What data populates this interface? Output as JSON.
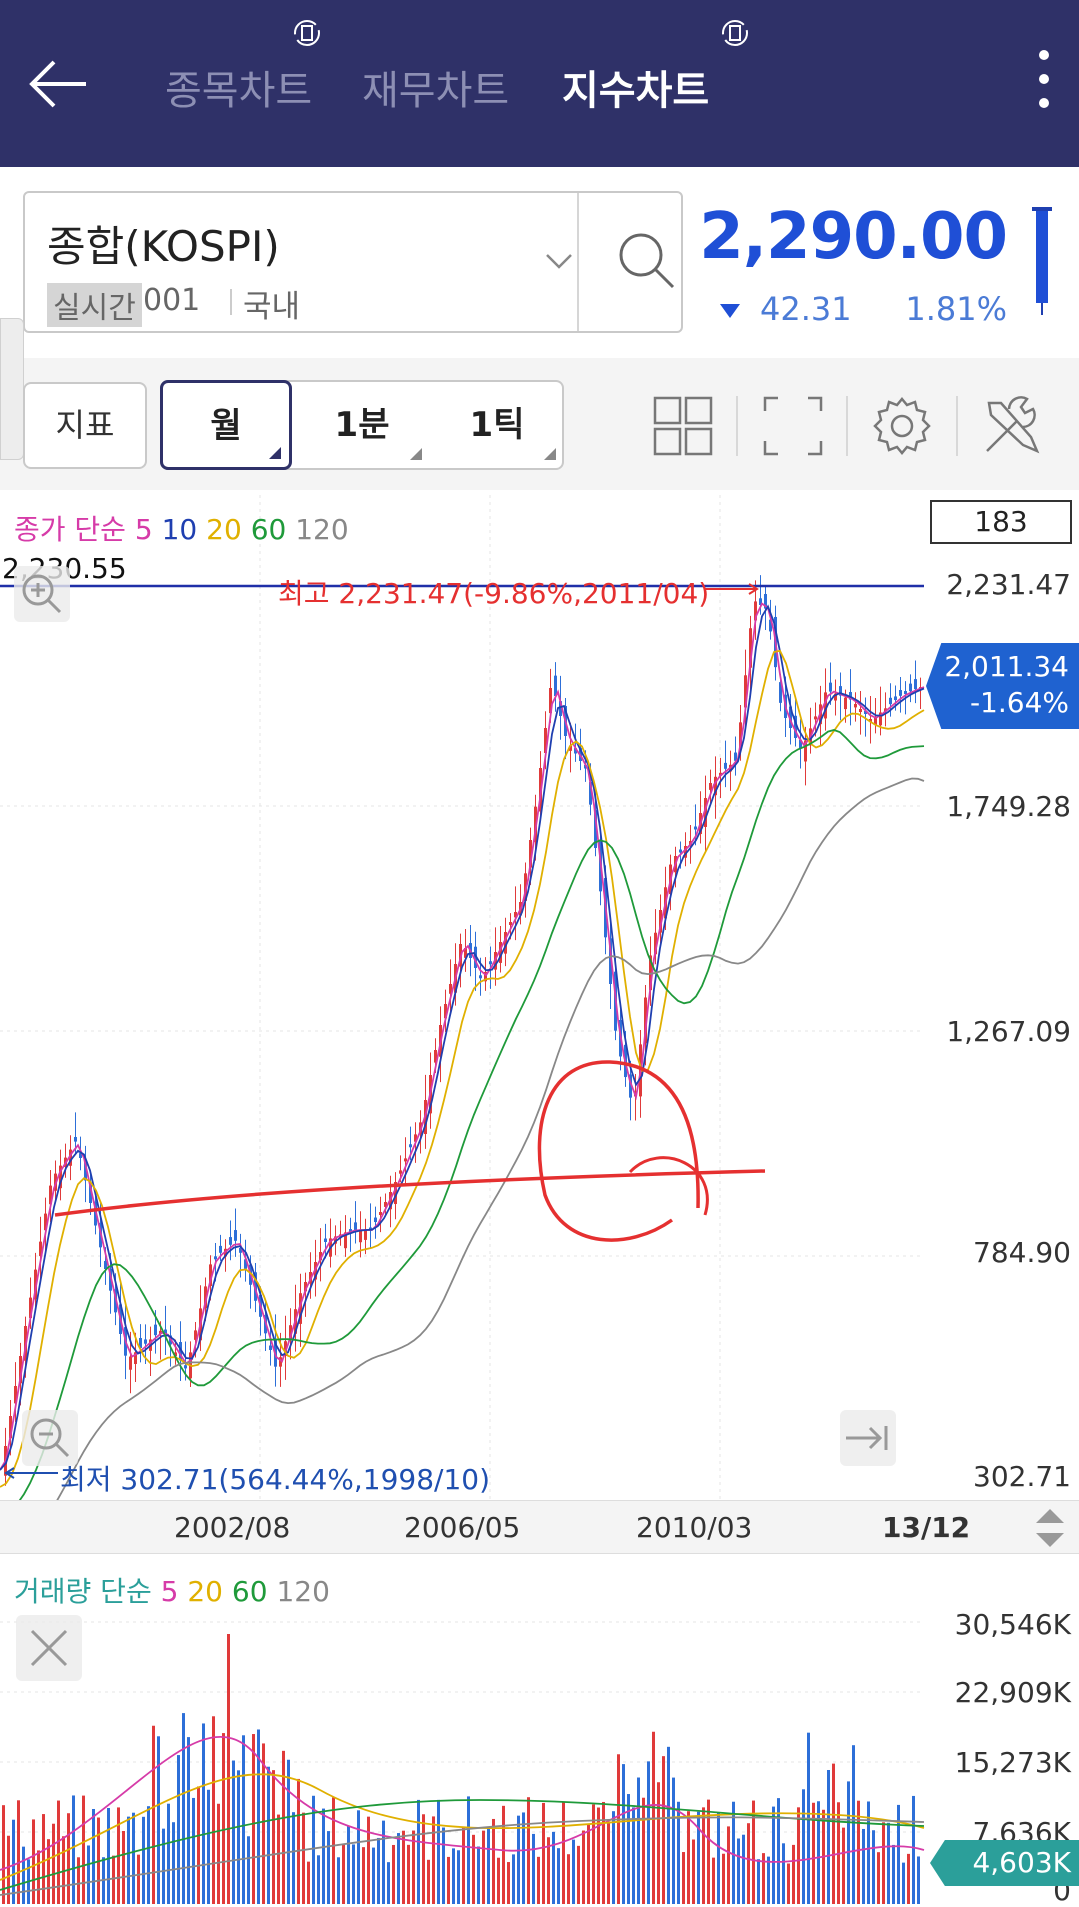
{
  "header": {
    "tabs": [
      {
        "label": "종목차트",
        "active": false
      },
      {
        "label": "재무차트",
        "active": false
      },
      {
        "label": "지수차트",
        "active": true
      }
    ]
  },
  "symbol": {
    "name": "종합(KOSPI)",
    "realtime_tag": "실시간",
    "code": "001",
    "region": "국내"
  },
  "quote": {
    "price": "2,290.00",
    "change": "42.31",
    "change_pct": "1.81%",
    "direction": "down",
    "color": "#1f4fd6"
  },
  "toolbar": {
    "indicator_label": "지표",
    "periods": [
      "월",
      "1분",
      "1틱"
    ],
    "selected_period": "월",
    "icons": [
      "layout-grid-icon",
      "fullscreen-icon",
      "settings-gear-icon",
      "tools-icon"
    ]
  },
  "price_chart": {
    "legend": {
      "prefix": "종가 단순",
      "periods": [
        {
          "label": "5",
          "color": "#d63ba8"
        },
        {
          "label": "10",
          "color": "#1f3fb0"
        },
        {
          "label": "20",
          "color": "#e0b000"
        },
        {
          "label": "60",
          "color": "#1f9a3a"
        },
        {
          "label": "120",
          "color": "#888888"
        }
      ]
    },
    "bar_count": "183",
    "y_labels": [
      "2,231.47",
      "1,749.28",
      "1,267.09",
      "784.90",
      "302.71"
    ],
    "cursor_value": "2,230.55",
    "current": {
      "value": "2,011.34",
      "pct": "-1.64%"
    },
    "high_note": "최고 2,231.47(-9.86%,2011/04)",
    "low_note": "최저 302.71(564.44%,1998/10)",
    "x_labels": [
      "2002/08",
      "2006/05",
      "2010/03",
      "13/12"
    ]
  },
  "chart_data": {
    "type": "candlestick",
    "interval": "monthly",
    "ylim": [
      302.71,
      2231.47
    ],
    "high": {
      "value": 2231.47,
      "date": "2011/04"
    },
    "low": {
      "value": 302.71,
      "date": "1998/10"
    },
    "last_close": 2011.34
  },
  "volume_chart": {
    "legend": {
      "prefix": "거래량 단순",
      "periods": [
        {
          "label": "5",
          "color": "#d63ba8"
        },
        {
          "label": "20",
          "color": "#e0b000"
        },
        {
          "label": "60",
          "color": "#1f9a3a"
        },
        {
          "label": "120",
          "color": "#888888"
        }
      ]
    },
    "y_labels": [
      "30,546K",
      "22,909K",
      "15,273K",
      "7,636K",
      "0"
    ],
    "current": "4,603K"
  }
}
